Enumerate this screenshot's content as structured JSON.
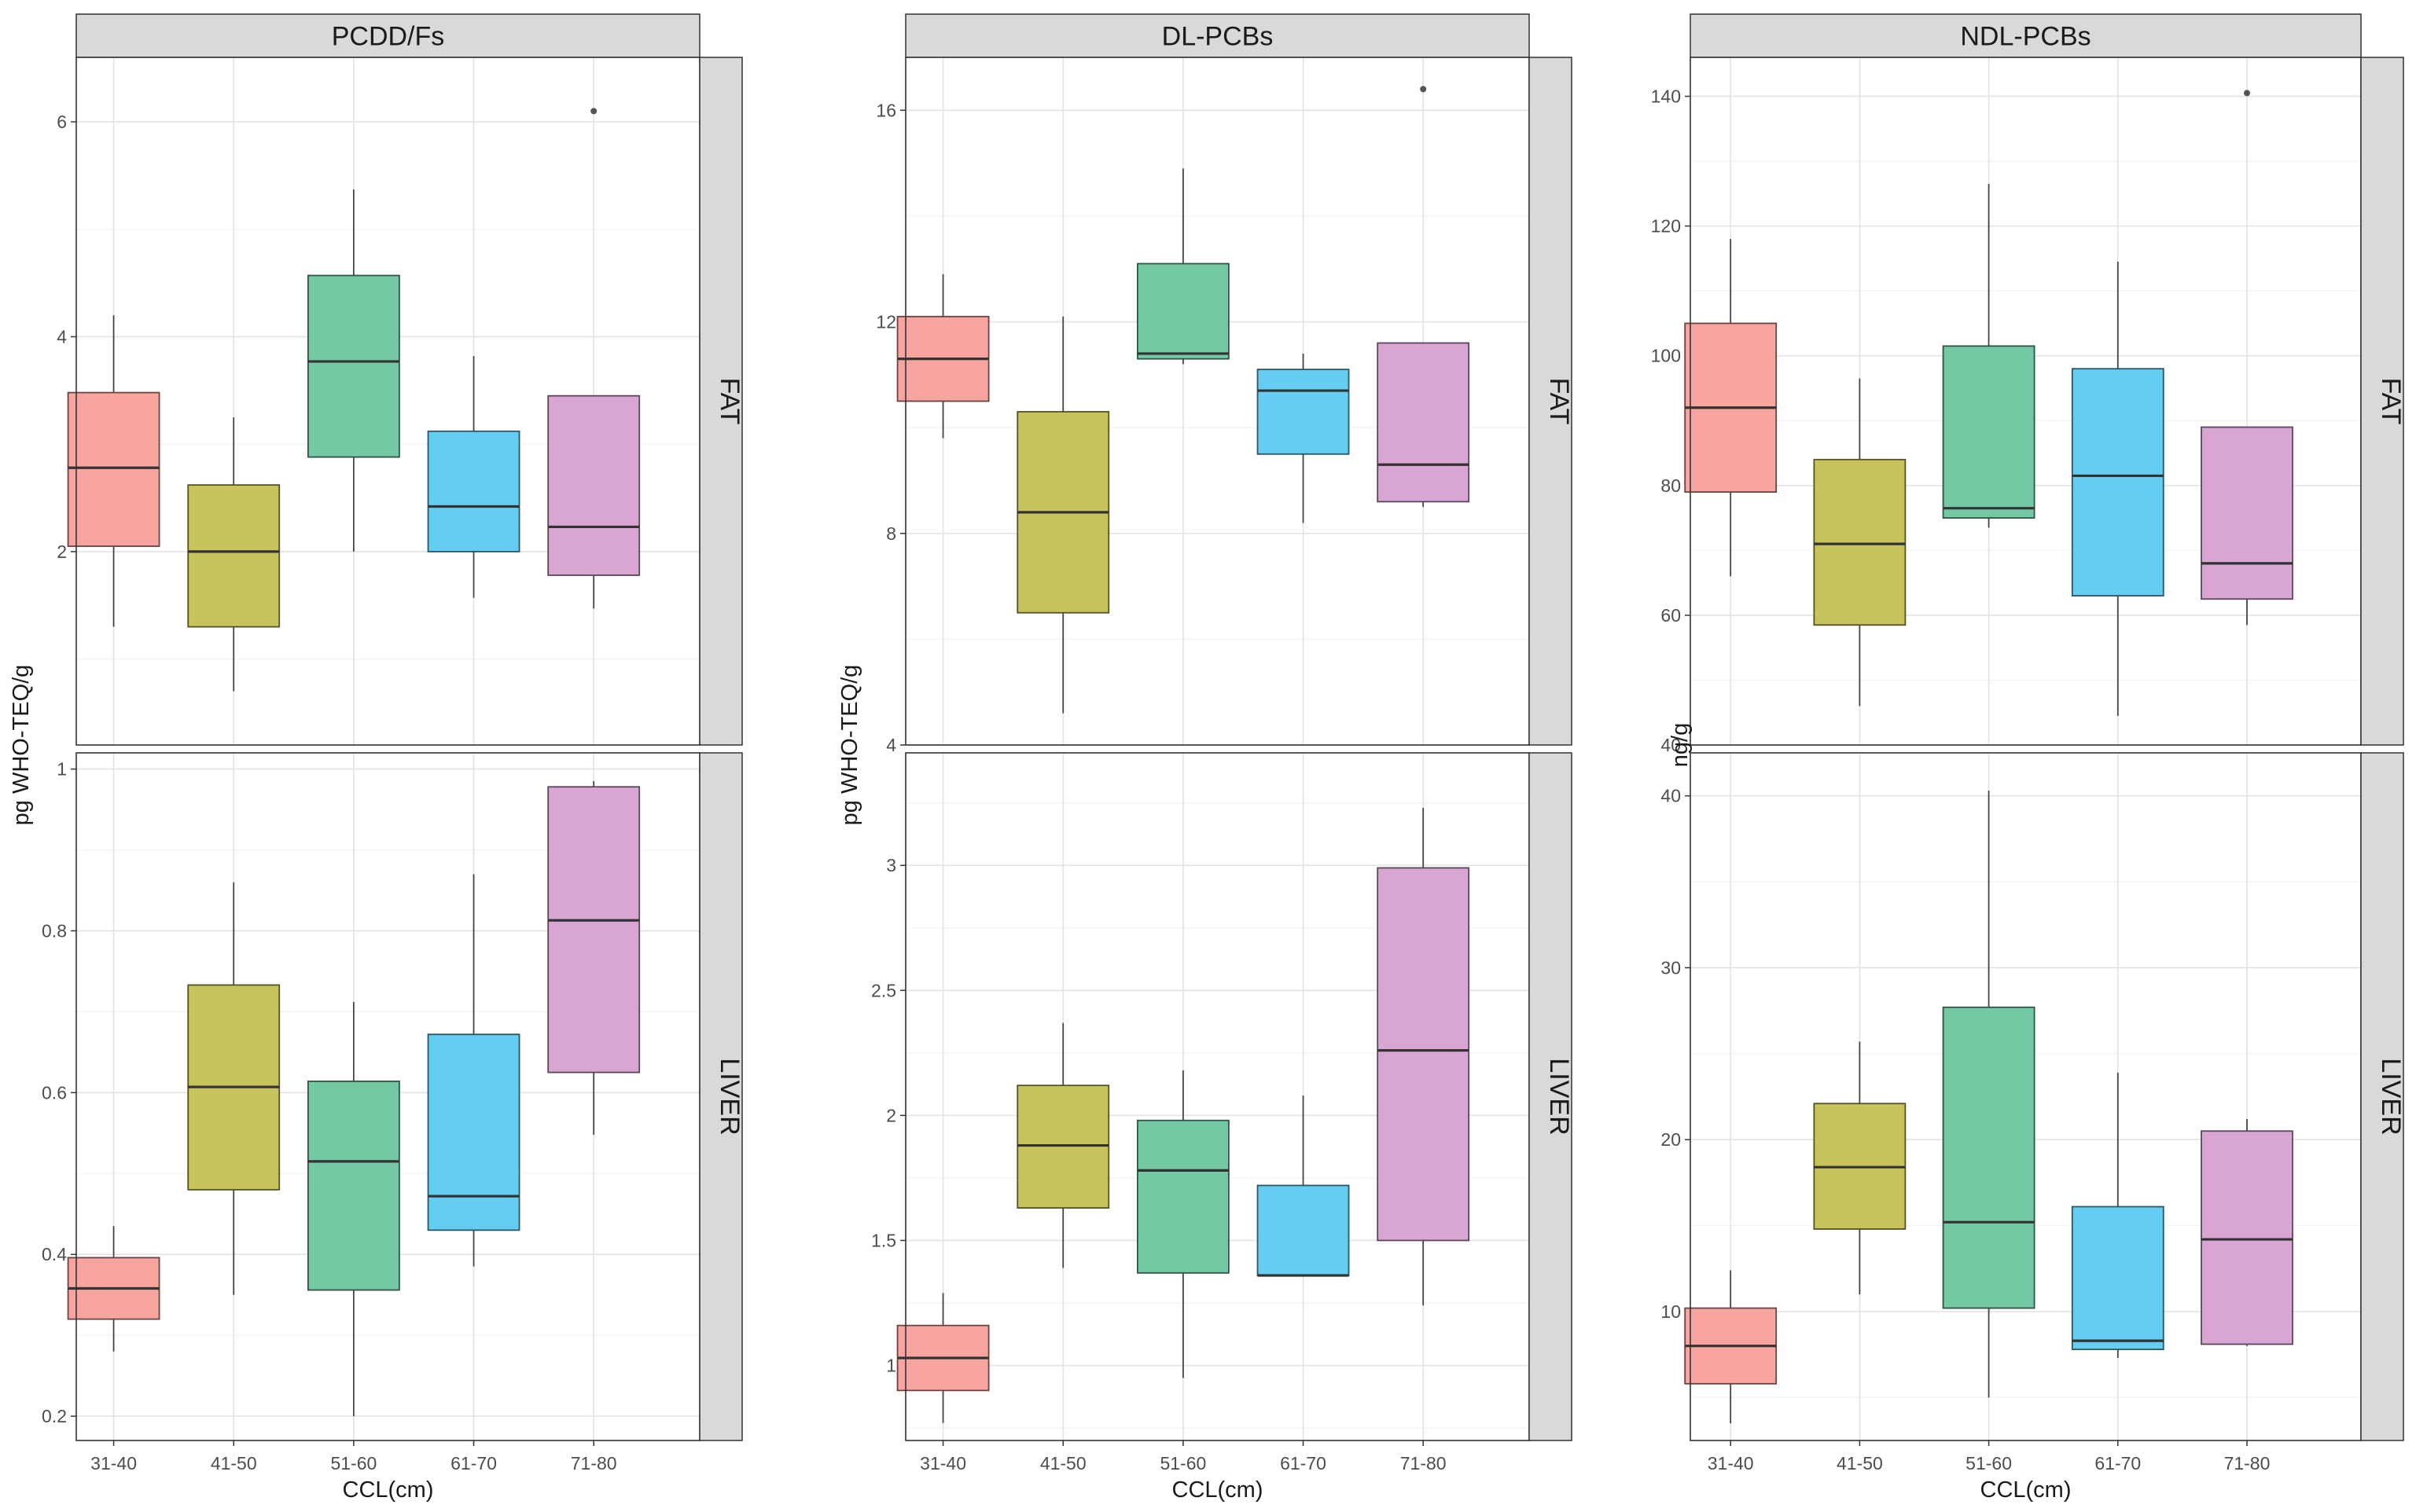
{
  "chart_data": {
    "type": "boxplot",
    "x_categories": [
      "31-40",
      "41-50",
      "51-60",
      "61-70",
      "71-80"
    ],
    "row_strips": [
      "FAT",
      "LIVER"
    ],
    "colors": [
      "#f8a5a0",
      "#c7c45c",
      "#72c9a4",
      "#66cdf2",
      "#d9a6d4"
    ],
    "panels": [
      {
        "title": "PCDD/Fs",
        "xlabel": "CCL(cm)",
        "ylabel": "pg WHO-TEQ/g",
        "facets": [
          {
            "strip": "FAT",
            "ylim": [
              0.2,
              6.6
            ],
            "yticks": [
              2,
              4,
              6
            ],
            "boxes": [
              {
                "min": 1.3,
                "q1": 2.05,
                "median": 2.78,
                "q3": 3.48,
                "max": 4.2,
                "outliers": []
              },
              {
                "min": 0.7,
                "q1": 1.3,
                "median": 2.0,
                "q3": 2.62,
                "max": 3.25,
                "outliers": []
              },
              {
                "min": 2.0,
                "q1": 2.88,
                "median": 3.77,
                "q3": 4.57,
                "max": 5.37,
                "outliers": []
              },
              {
                "min": 1.57,
                "q1": 2.0,
                "median": 2.42,
                "q3": 3.12,
                "max": 3.82,
                "outliers": []
              },
              {
                "min": 1.47,
                "q1": 1.78,
                "median": 2.23,
                "q3": 3.45,
                "max": 3.45,
                "outliers": [
                  6.1
                ]
              }
            ]
          },
          {
            "strip": "LIVER",
            "ylim": [
              0.17,
              1.02
            ],
            "yticks": [
              0.2,
              0.4,
              0.6,
              0.8,
              1.0
            ],
            "boxes": [
              {
                "min": 0.28,
                "q1": 0.32,
                "median": 0.358,
                "q3": 0.396,
                "max": 0.435,
                "outliers": []
              },
              {
                "min": 0.35,
                "q1": 0.48,
                "median": 0.607,
                "q3": 0.733,
                "max": 0.86,
                "outliers": []
              },
              {
                "min": 0.2,
                "q1": 0.356,
                "median": 0.515,
                "q3": 0.614,
                "max": 0.712,
                "outliers": []
              },
              {
                "min": 0.385,
                "q1": 0.43,
                "median": 0.472,
                "q3": 0.672,
                "max": 0.87,
                "outliers": []
              },
              {
                "min": 0.548,
                "q1": 0.625,
                "median": 0.813,
                "q3": 0.978,
                "max": 0.985,
                "outliers": []
              }
            ]
          }
        ]
      },
      {
        "title": "DL-PCBs",
        "xlabel": "CCL(cm)",
        "ylabel": "pg WHO-TEQ/g",
        "facets": [
          {
            "strip": "FAT",
            "ylim": [
              4.0,
              17.0
            ],
            "yticks": [
              4,
              8,
              12,
              16
            ],
            "boxes": [
              {
                "min": 9.8,
                "q1": 10.5,
                "median": 11.3,
                "q3": 12.1,
                "max": 12.9,
                "outliers": []
              },
              {
                "min": 4.6,
                "q1": 6.5,
                "median": 8.4,
                "q3": 10.3,
                "max": 12.1,
                "outliers": []
              },
              {
                "min": 11.2,
                "q1": 11.3,
                "median": 11.4,
                "q3": 13.1,
                "max": 14.9,
                "outliers": []
              },
              {
                "min": 8.2,
                "q1": 9.5,
                "median": 10.7,
                "q3": 11.1,
                "max": 11.4,
                "outliers": []
              },
              {
                "min": 8.5,
                "q1": 8.6,
                "median": 9.3,
                "q3": 11.6,
                "max": 11.6,
                "outliers": [
                  16.4
                ]
              }
            ]
          },
          {
            "strip": "LIVER",
            "ylim": [
              0.7,
              3.45
            ],
            "yticks": [
              1.0,
              1.5,
              2.0,
              2.5,
              3.0
            ],
            "boxes": [
              {
                "min": 0.77,
                "q1": 0.9,
                "median": 1.03,
                "q3": 1.16,
                "max": 1.29,
                "outliers": []
              },
              {
                "min": 1.39,
                "q1": 1.63,
                "median": 1.88,
                "q3": 2.12,
                "max": 2.37,
                "outliers": []
              },
              {
                "min": 0.95,
                "q1": 1.37,
                "median": 1.78,
                "q3": 1.98,
                "max": 2.18,
                "outliers": []
              },
              {
                "min": 1.36,
                "q1": 1.36,
                "median": 1.36,
                "q3": 1.72,
                "max": 2.08,
                "outliers": []
              },
              {
                "min": 1.24,
                "q1": 1.5,
                "median": 2.26,
                "q3": 2.99,
                "max": 3.23,
                "outliers": []
              }
            ]
          }
        ]
      },
      {
        "title": "NDL-PCBs",
        "xlabel": "CCL(cm)",
        "ylabel": "ng/g",
        "facets": [
          {
            "strip": "FAT",
            "ylim": [
              40,
              146
            ],
            "yticks": [
              40,
              60,
              80,
              100,
              120,
              140
            ],
            "boxes": [
              {
                "min": 66,
                "q1": 79,
                "median": 92,
                "q3": 105,
                "max": 118,
                "outliers": []
              },
              {
                "min": 46,
                "q1": 58.5,
                "median": 71,
                "q3": 84,
                "max": 96.5,
                "outliers": []
              },
              {
                "min": 73.5,
                "q1": 75,
                "median": 76.5,
                "q3": 101.5,
                "max": 126.5,
                "outliers": []
              },
              {
                "min": 44.5,
                "q1": 63,
                "median": 81.5,
                "q3": 98,
                "max": 114.5,
                "outliers": []
              },
              {
                "min": 58.5,
                "q1": 62.5,
                "median": 68,
                "q3": 89,
                "max": 89,
                "outliers": [
                  140.5
                ]
              }
            ]
          },
          {
            "strip": "LIVER",
            "ylim": [
              2.5,
              42.5
            ],
            "yticks": [
              10,
              20,
              30,
              40
            ],
            "boxes": [
              {
                "min": 3.5,
                "q1": 5.8,
                "median": 8.0,
                "q3": 10.2,
                "max": 12.4,
                "outliers": []
              },
              {
                "min": 11.0,
                "q1": 14.8,
                "median": 18.4,
                "q3": 22.1,
                "max": 25.7,
                "outliers": []
              },
              {
                "min": 5.0,
                "q1": 10.2,
                "median": 15.2,
                "q3": 27.7,
                "max": 40.3,
                "outliers": []
              },
              {
                "min": 7.3,
                "q1": 7.8,
                "median": 8.3,
                "q3": 16.1,
                "max": 23.9,
                "outliers": []
              },
              {
                "min": 8.0,
                "q1": 8.1,
                "median": 14.2,
                "q3": 20.5,
                "max": 21.2,
                "outliers": []
              }
            ]
          }
        ]
      }
    ]
  }
}
